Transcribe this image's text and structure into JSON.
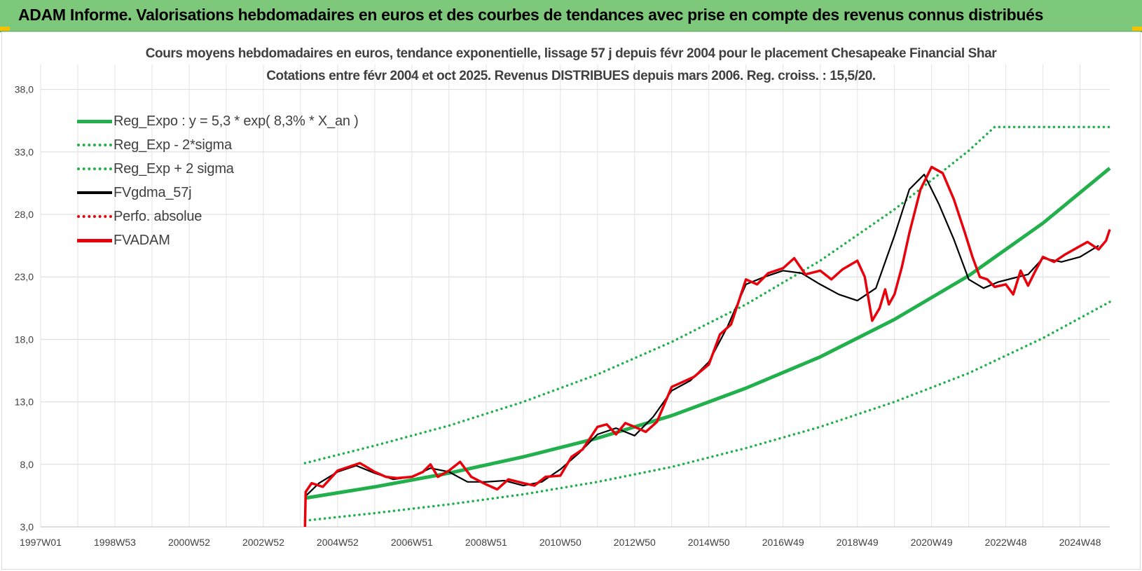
{
  "banner": {
    "title": "ADAM Informe. Valorisations hebdomadaires en euros et des courbes de tendances avec prise en compte des revenus connus distribués"
  },
  "chart_data": {
    "type": "line",
    "title_line1": "Cours moyens hebdomadaires en euros, tendance exponentielle, lissage 57 j depuis févr 2004 pour le placement Chesapeake Financial Shar",
    "title_line2": "Cotations entre févr 2004 et oct 2025. Revenus DISTRIBUES depuis mars 2006. Reg. croiss. : 15,5/20.",
    "xlabel": "",
    "ylabel": "",
    "x_range": [
      1997.0,
      2025.8
    ],
    "ylim": [
      3.0,
      40.0
    ],
    "y_ticks": [
      "3,0",
      "8,0",
      "13,0",
      "18,0",
      "23,0",
      "28,0",
      "33,0",
      "38,0"
    ],
    "y_tick_values": [
      3,
      8,
      13,
      18,
      23,
      28,
      33,
      38
    ],
    "x_tick_labels": [
      "1997W01",
      "1998W53",
      "2000W52",
      "2002W52",
      "2004W52",
      "2006W51",
      "2008W51",
      "2010W50",
      "2012W50",
      "2014W50",
      "2016W49",
      "2018W49",
      "2020W49",
      "2022W48",
      "2024W48"
    ],
    "x_tick_values": [
      1997.0,
      1999.0,
      2001.0,
      2003.0,
      2005.0,
      2007.0,
      2009.0,
      2011.0,
      2013.0,
      2015.0,
      2017.0,
      2019.0,
      2021.0,
      2023.0,
      2025.0
    ],
    "grid": true,
    "legend_position": "top-left",
    "series": [
      {
        "name": "Reg_Expo : y = 5,3 * exp( 8,3% *  X_an )",
        "style": "solid",
        "color": "#22b04c",
        "x": [
          2004.12,
          2006,
          2008,
          2010,
          2012,
          2014,
          2016,
          2018,
          2020,
          2022,
          2024,
          2025.8
        ],
        "values": [
          5.3,
          6.2,
          7.3,
          8.6,
          10.1,
          11.9,
          14.1,
          16.6,
          19.6,
          23.1,
          27.3,
          31.7
        ]
      },
      {
        "name": "Reg_Exp - 2*sigma",
        "style": "dotted",
        "color": "#22b04c",
        "x": [
          2004.12,
          2006,
          2008,
          2010,
          2012,
          2014,
          2016,
          2018,
          2020,
          2022,
          2024,
          2025.8
        ],
        "values": [
          3.5,
          4.1,
          4.8,
          5.6,
          6.6,
          7.8,
          9.3,
          11.0,
          13.0,
          15.3,
          18.1,
          21.0
        ]
      },
      {
        "name": "Reg_Exp + 2 sigma",
        "style": "dotted",
        "color": "#22b04c",
        "x": [
          2004.12,
          2006,
          2008,
          2010,
          2012,
          2014,
          2016,
          2018,
          2020,
          2022,
          2022.7,
          2025.8
        ],
        "values": [
          8.1,
          9.5,
          11.1,
          13.0,
          15.2,
          17.8,
          20.8,
          24.3,
          28.4,
          33.1,
          35.0,
          35.0
        ]
      },
      {
        "name": "FVgdma_57j",
        "style": "solid",
        "color": "#000000",
        "x": [
          2004.15,
          2004.5,
          2005.0,
          2005.5,
          2006.0,
          2006.5,
          2007.0,
          2007.5,
          2008.0,
          2008.5,
          2009.0,
          2009.5,
          2010.0,
          2010.5,
          2011.0,
          2011.5,
          2012.0,
          2012.5,
          2013.0,
          2013.5,
          2014.0,
          2014.5,
          2015.0,
          2015.5,
          2016.0,
          2016.5,
          2017.0,
          2017.5,
          2018.0,
          2018.5,
          2019.0,
          2019.5,
          2020.0,
          2020.4,
          2020.8,
          2021.2,
          2021.6,
          2022.0,
          2022.4,
          2022.8,
          2023.2,
          2023.6,
          2024.0,
          2024.5,
          2025.0,
          2025.5
        ],
        "values": [
          5.5,
          6.5,
          7.4,
          7.9,
          7.3,
          6.8,
          7.0,
          7.7,
          7.4,
          6.6,
          6.6,
          6.7,
          6.3,
          6.6,
          7.6,
          8.9,
          10.4,
          10.9,
          10.3,
          11.8,
          13.9,
          14.7,
          16.2,
          19.0,
          22.4,
          23.0,
          23.5,
          23.3,
          22.4,
          21.6,
          21.1,
          22.1,
          26.3,
          30.0,
          31.2,
          28.8,
          26.0,
          22.8,
          22.1,
          22.6,
          22.9,
          23.2,
          24.5,
          24.2,
          24.6,
          25.5
        ]
      },
      {
        "name": "Perfo. absolue",
        "style": "dotted",
        "color": "#e8000b",
        "x": [],
        "values": []
      },
      {
        "name": "FVADAM",
        "style": "solid",
        "color": "#e8000b",
        "x": [
          2004.12,
          2004.14,
          2004.3,
          2004.6,
          2005.0,
          2005.3,
          2005.6,
          2006.0,
          2006.3,
          2006.6,
          2007.0,
          2007.3,
          2007.5,
          2007.7,
          2008.0,
          2008.3,
          2008.6,
          2009.0,
          2009.3,
          2009.6,
          2010.0,
          2010.3,
          2010.6,
          2011.0,
          2011.3,
          2011.6,
          2012.0,
          2012.25,
          2012.5,
          2012.75,
          2013.0,
          2013.3,
          2013.6,
          2014.0,
          2014.3,
          2014.6,
          2015.0,
          2015.3,
          2015.6,
          2016.0,
          2016.3,
          2016.6,
          2017.0,
          2017.3,
          2017.6,
          2018.0,
          2018.3,
          2018.6,
          2019.0,
          2019.2,
          2019.4,
          2019.6,
          2019.75,
          2019.85,
          2020.0,
          2020.2,
          2020.4,
          2020.7,
          2021.0,
          2021.3,
          2021.6,
          2021.9,
          2022.1,
          2022.3,
          2022.5,
          2022.7,
          2023.0,
          2023.2,
          2023.4,
          2023.6,
          2023.8,
          2024.0,
          2024.3,
          2024.6,
          2024.9,
          2025.2,
          2025.5,
          2025.7,
          2025.8
        ],
        "values": [
          3.0,
          5.8,
          6.5,
          6.2,
          7.5,
          7.8,
          8.1,
          7.4,
          7.0,
          6.9,
          7.0,
          7.4,
          8.0,
          7.0,
          7.5,
          8.2,
          7.0,
          6.4,
          6.0,
          6.8,
          6.5,
          6.3,
          7.0,
          7.1,
          8.6,
          9.2,
          11.0,
          11.2,
          10.4,
          11.3,
          11.0,
          10.6,
          11.4,
          14.2,
          14.6,
          15.0,
          16.0,
          18.4,
          19.2,
          22.8,
          22.4,
          23.3,
          23.7,
          24.5,
          23.2,
          23.5,
          22.8,
          23.6,
          24.3,
          23.0,
          19.5,
          20.5,
          22.0,
          20.8,
          21.6,
          23.8,
          26.5,
          30.0,
          31.8,
          31.3,
          29.2,
          26.5,
          24.6,
          23.0,
          22.8,
          22.2,
          22.4,
          21.6,
          23.5,
          22.3,
          23.5,
          24.6,
          24.2,
          24.8,
          25.3,
          25.8,
          25.2,
          25.9,
          26.8
        ]
      }
    ]
  }
}
